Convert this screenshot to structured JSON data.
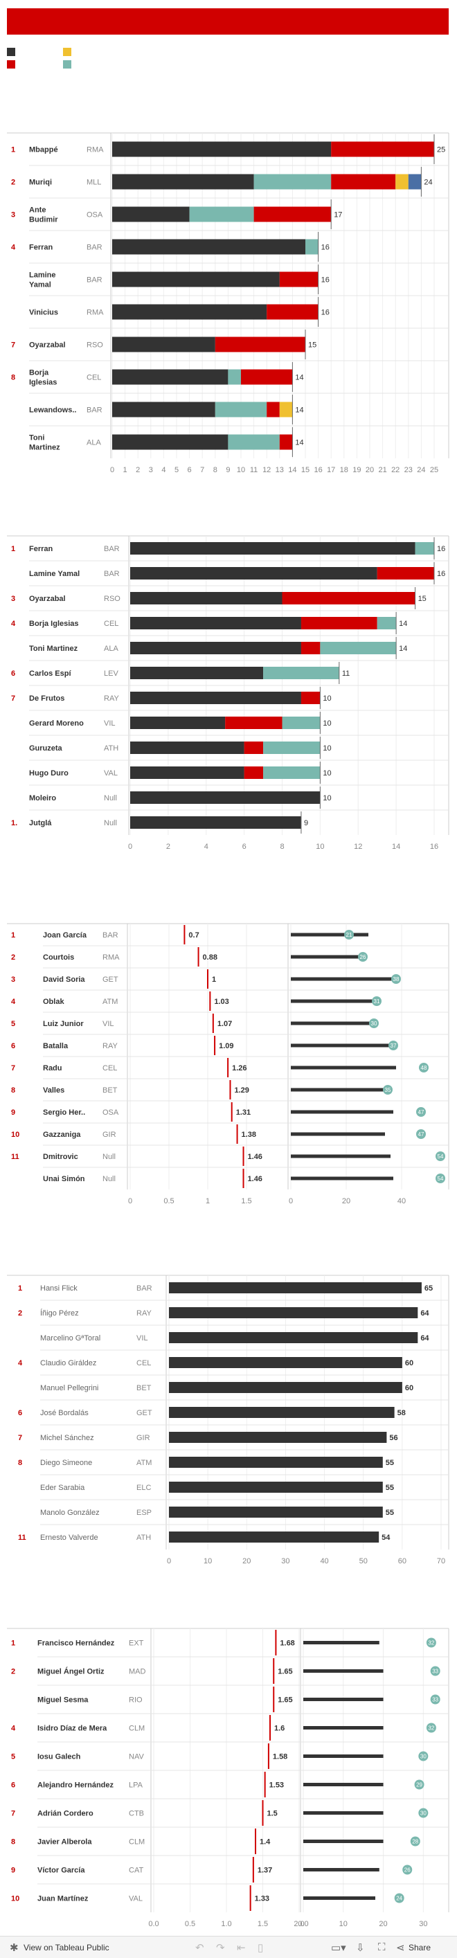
{
  "colors": {
    "black": "#333333",
    "red": "#d00000",
    "teal": "#7ab8ae",
    "yellow": "#f0c030",
    "blue": "#4a6fa5",
    "rank": "#c00000",
    "muted": "#888888",
    "grid": "#dddddd"
  },
  "footer": {
    "view_label": "View on Tableau Public",
    "share_label": "Share"
  },
  "chart_data": [
    {
      "type": "bar",
      "stacked": true,
      "orientation": "horizontal",
      "xlim": [
        0,
        25
      ],
      "ticks": [
        0,
        1,
        2,
        3,
        4,
        5,
        6,
        7,
        8,
        9,
        10,
        11,
        12,
        13,
        14,
        15,
        16,
        17,
        18,
        19,
        20,
        21,
        22,
        23,
        24,
        25
      ],
      "rows": [
        {
          "rank": "1",
          "name": "Mbappé",
          "team": "RMA",
          "total": "25",
          "segments": [
            {
              "c": "black",
              "v": 17
            },
            {
              "c": "red",
              "v": 8
            }
          ]
        },
        {
          "rank": "2",
          "name": "Muriqi",
          "team": "MLL",
          "total": "24",
          "segments": [
            {
              "c": "black",
              "v": 11
            },
            {
              "c": "teal",
              "v": 6
            },
            {
              "c": "red",
              "v": 5
            },
            {
              "c": "yellow",
              "v": 1
            },
            {
              "c": "blue",
              "v": 1
            }
          ]
        },
        {
          "rank": "3",
          "name": "Ante Budimir",
          "team": "OSA",
          "total": "17",
          "segments": [
            {
              "c": "black",
              "v": 6
            },
            {
              "c": "teal",
              "v": 5
            },
            {
              "c": "red",
              "v": 6
            }
          ]
        },
        {
          "rank": "4",
          "name": "Ferran",
          "team": "BAR",
          "total": "16",
          "segments": [
            {
              "c": "black",
              "v": 15
            },
            {
              "c": "teal",
              "v": 1
            }
          ]
        },
        {
          "rank": "",
          "name": "Lamine Yamal",
          "team": "BAR",
          "total": "16",
          "segments": [
            {
              "c": "black",
              "v": 13
            },
            {
              "c": "red",
              "v": 3
            }
          ]
        },
        {
          "rank": "",
          "name": "Vinicius",
          "team": "RMA",
          "total": "16",
          "segments": [
            {
              "c": "black",
              "v": 12
            },
            {
              "c": "red",
              "v": 4
            }
          ]
        },
        {
          "rank": "7",
          "name": "Oyarzabal",
          "team": "RSO",
          "total": "15",
          "segments": [
            {
              "c": "black",
              "v": 8
            },
            {
              "c": "red",
              "v": 7
            }
          ]
        },
        {
          "rank": "8",
          "name": "Borja Iglesias",
          "team": "CEL",
          "total": "14",
          "segments": [
            {
              "c": "black",
              "v": 9
            },
            {
              "c": "teal",
              "v": 1
            },
            {
              "c": "red",
              "v": 4
            }
          ]
        },
        {
          "rank": "",
          "name": "Lewandows..",
          "team": "BAR",
          "total": "14",
          "segments": [
            {
              "c": "black",
              "v": 8
            },
            {
              "c": "teal",
              "v": 4
            },
            {
              "c": "red",
              "v": 1
            },
            {
              "c": "yellow",
              "v": 1
            }
          ]
        },
        {
          "rank": "",
          "name": "Toni Martinez",
          "team": "ALA",
          "total": "14",
          "segments": [
            {
              "c": "black",
              "v": 9
            },
            {
              "c": "teal",
              "v": 4
            },
            {
              "c": "red",
              "v": 1
            }
          ]
        }
      ]
    },
    {
      "type": "bar",
      "stacked": true,
      "orientation": "horizontal",
      "xlim": [
        0,
        16
      ],
      "ticks": [
        0,
        2,
        4,
        6,
        8,
        10,
        12,
        14,
        16
      ],
      "rows": [
        {
          "rank": "1",
          "name": "Ferran",
          "team": "BAR",
          "total": "16",
          "segments": [
            {
              "c": "black",
              "v": 15
            },
            {
              "c": "teal",
              "v": 1
            }
          ]
        },
        {
          "rank": "",
          "name": "Lamine Yamal",
          "team": "BAR",
          "total": "16",
          "segments": [
            {
              "c": "black",
              "v": 13
            },
            {
              "c": "red",
              "v": 3
            }
          ]
        },
        {
          "rank": "3",
          "name": "Oyarzabal",
          "team": "RSO",
          "total": "15",
          "segments": [
            {
              "c": "black",
              "v": 8
            },
            {
              "c": "red",
              "v": 7
            }
          ]
        },
        {
          "rank": "4",
          "name": "Borja Iglesias",
          "team": "CEL",
          "total": "14",
          "segments": [
            {
              "c": "black",
              "v": 9
            },
            {
              "c": "red",
              "v": 4
            },
            {
              "c": "teal",
              "v": 1
            }
          ]
        },
        {
          "rank": "",
          "name": "Toni Martinez",
          "team": "ALA",
          "total": "14",
          "segments": [
            {
              "c": "black",
              "v": 9
            },
            {
              "c": "red",
              "v": 1
            },
            {
              "c": "teal",
              "v": 4
            }
          ]
        },
        {
          "rank": "6",
          "name": "Carlos Espí",
          "team": "LEV",
          "total": "11",
          "segments": [
            {
              "c": "black",
              "v": 7
            },
            {
              "c": "teal",
              "v": 4
            }
          ]
        },
        {
          "rank": "7",
          "name": "De Frutos",
          "team": "RAY",
          "total": "10",
          "segments": [
            {
              "c": "black",
              "v": 9
            },
            {
              "c": "red",
              "v": 1
            }
          ]
        },
        {
          "rank": "",
          "name": "Gerard Moreno",
          "team": "VIL",
          "total": "10",
          "segments": [
            {
              "c": "black",
              "v": 5
            },
            {
              "c": "red",
              "v": 3
            },
            {
              "c": "teal",
              "v": 2
            }
          ]
        },
        {
          "rank": "",
          "name": "Guruzeta",
          "team": "ATH",
          "total": "10",
          "segments": [
            {
              "c": "black",
              "v": 6
            },
            {
              "c": "red",
              "v": 1
            },
            {
              "c": "teal",
              "v": 3
            }
          ]
        },
        {
          "rank": "",
          "name": "Hugo Duro",
          "team": "VAL",
          "total": "10",
          "segments": [
            {
              "c": "black",
              "v": 6
            },
            {
              "c": "red",
              "v": 1
            },
            {
              "c": "teal",
              "v": 3
            }
          ]
        },
        {
          "rank": "",
          "name": "Moleiro",
          "team": "Null",
          "total": "10",
          "segments": [
            {
              "c": "black",
              "v": 10
            }
          ]
        },
        {
          "rank": "1.",
          "name": "Jutglá",
          "team": "Null",
          "total": "9",
          "segments": [
            {
              "c": "black",
              "v": 9
            }
          ]
        }
      ]
    },
    {
      "type": "scatter",
      "xlim_left": [
        0,
        2
      ],
      "ticks_left": [
        "0",
        "0.5",
        "1",
        "1.5"
      ],
      "xlim_right": [
        0,
        55
      ],
      "ticks_right": [
        "0",
        "20",
        "40"
      ],
      "rows": [
        {
          "rank": "1",
          "name": "Joan García",
          "team": "BAR",
          "value": 0.7,
          "label": "0.7",
          "games": 21,
          "bar": 28
        },
        {
          "rank": "2",
          "name": "Courtois",
          "team": "RMA",
          "value": 0.88,
          "label": "0.88",
          "games": 26,
          "bar": 26
        },
        {
          "rank": "3",
          "name": "David Soria",
          "team": "GET",
          "value": 1,
          "label": "1",
          "games": 38,
          "bar": 38
        },
        {
          "rank": "4",
          "name": "Oblak",
          "team": "ATM",
          "value": 1.03,
          "label": "1.03",
          "games": 31,
          "bar": 30
        },
        {
          "rank": "5",
          "name": "Luiz Junior",
          "team": "VIL",
          "value": 1.07,
          "label": "1.07",
          "games": 30,
          "bar": 29
        },
        {
          "rank": "6",
          "name": "Batalla",
          "team": "RAY",
          "value": 1.09,
          "label": "1.09",
          "games": 37,
          "bar": 36
        },
        {
          "rank": "7",
          "name": "Radu",
          "team": "CEL",
          "value": 1.26,
          "label": "1.26",
          "games": 48,
          "bar": 38
        },
        {
          "rank": "8",
          "name": "Valles",
          "team": "BET",
          "value": 1.29,
          "label": "1.29",
          "games": 35,
          "bar": 34
        },
        {
          "rank": "9",
          "name": "Sergio Her..",
          "team": "OSA",
          "value": 1.31,
          "label": "1.31",
          "games": 47,
          "bar": 37
        },
        {
          "rank": "10",
          "name": "Gazzaniga",
          "team": "GIR",
          "value": 1.38,
          "label": "1.38",
          "games": 47,
          "bar": 34
        },
        {
          "rank": "11",
          "name": "Dmitrovic",
          "team": "Null",
          "value": 1.46,
          "label": "1.46",
          "games": 54,
          "bar": 36
        },
        {
          "rank": "",
          "name": "Unai Simón",
          "team": "Null",
          "value": 1.46,
          "label": "1.46",
          "games": 54,
          "bar": 37
        }
      ]
    },
    {
      "type": "bar",
      "orientation": "horizontal",
      "xlim": [
        0,
        70
      ],
      "ticks": [
        0,
        10,
        20,
        30,
        40,
        50,
        60,
        70
      ],
      "rows": [
        {
          "rank": "1",
          "name": "Hansi Flick",
          "team": "BAR",
          "value": 65
        },
        {
          "rank": "2",
          "name": "Íñigo Pérez",
          "team": "RAY",
          "value": 64
        },
        {
          "rank": "",
          "name": "Marcelino GªToral",
          "team": "VIL",
          "value": 64
        },
        {
          "rank": "4",
          "name": "Claudio Giráldez",
          "team": "CEL",
          "value": 60
        },
        {
          "rank": "",
          "name": "Manuel Pellegrini",
          "team": "BET",
          "value": 60
        },
        {
          "rank": "6",
          "name": "José Bordalás",
          "team": "GET",
          "value": 58
        },
        {
          "rank": "7",
          "name": "Michel Sánchez",
          "team": "GIR",
          "value": 56
        },
        {
          "rank": "8",
          "name": "Diego Simeone",
          "team": "ATM",
          "value": 55
        },
        {
          "rank": "",
          "name": "Eder Sarabia",
          "team": "ELC",
          "value": 55
        },
        {
          "rank": "",
          "name": "Manolo González",
          "team": "ESP",
          "value": 55
        },
        {
          "rank": "11",
          "name": "Ernesto Valverde",
          "team": "ATH",
          "value": 54
        }
      ]
    },
    {
      "type": "scatter",
      "xlim_left": [
        0,
        2
      ],
      "ticks_left": [
        "0.0",
        "0.5",
        "1.0",
        "1.5",
        "2.0"
      ],
      "xlim_right": [
        0,
        36
      ],
      "ticks_right": [
        "0.0",
        "10",
        "20",
        "30"
      ],
      "rows": [
        {
          "rank": "1",
          "name": "Francisco Hernández",
          "team": "EXT",
          "value": 1.68,
          "label": "1.68",
          "games": 32,
          "bar": 19
        },
        {
          "rank": "2",
          "name": "Miguel Ángel Ortiz",
          "team": "MAD",
          "value": 1.65,
          "label": "1.65",
          "games": 33,
          "bar": 20
        },
        {
          "rank": "",
          "name": "Miguel Sesma",
          "team": "RIO",
          "value": 1.65,
          "label": "1.65",
          "games": 33,
          "bar": 20
        },
        {
          "rank": "4",
          "name": "Isidro Díaz de Mera",
          "team": "CLM",
          "value": 1.6,
          "label": "1.6",
          "games": 32,
          "bar": 20
        },
        {
          "rank": "5",
          "name": "Iosu Galech",
          "team": "NAV",
          "value": 1.58,
          "label": "1.58",
          "games": 30,
          "bar": 20
        },
        {
          "rank": "6",
          "name": "Alejandro Hernández",
          "team": "LPA",
          "value": 1.53,
          "label": "1.53",
          "games": 29,
          "bar": 20
        },
        {
          "rank": "7",
          "name": "Adrián Cordero",
          "team": "CTB",
          "value": 1.5,
          "label": "1.5",
          "games": 30,
          "bar": 20
        },
        {
          "rank": "8",
          "name": "Javier Alberola",
          "team": "CLM",
          "value": 1.4,
          "label": "1.4",
          "games": 28,
          "bar": 20
        },
        {
          "rank": "9",
          "name": "Víctor García",
          "team": "CAT",
          "value": 1.37,
          "label": "1.37",
          "games": 26,
          "bar": 19
        },
        {
          "rank": "10",
          "name": "Juan Martínez",
          "team": "VAL",
          "value": 1.33,
          "label": "1.33",
          "games": 24,
          "bar": 18
        }
      ]
    }
  ]
}
